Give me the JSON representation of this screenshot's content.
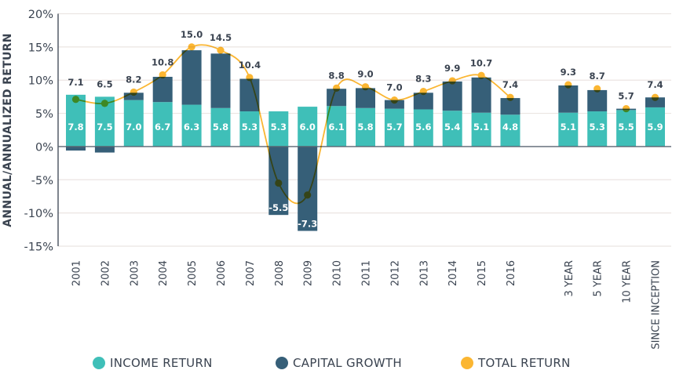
{
  "chart_data": {
    "type": "bar",
    "title": "",
    "xlabel": "",
    "ylabel": "ANNUAL/ANNUALIZED RETURN",
    "ylim": [
      -15,
      20
    ],
    "yticks": [
      20,
      15,
      10,
      5,
      0,
      -5,
      -10,
      -15
    ],
    "ytick_labels": [
      "20%",
      "15%",
      "10%",
      "5%",
      "0%",
      "-5%",
      "-10%",
      "-15%"
    ],
    "grid": true,
    "legend_placement": "bottom",
    "categories": [
      "2001",
      "2002",
      "2003",
      "2004",
      "2005",
      "2006",
      "2007",
      "2008",
      "2009",
      "2010",
      "2011",
      "2012",
      "2013",
      "2014",
      "2015",
      "2016",
      "3 YEAR",
      "5 YEAR",
      "10 YEAR",
      "SINCE INCEPTION"
    ],
    "category_gap_after": "2016",
    "series": [
      {
        "name": "INCOME RETURN",
        "type": "bar-stacked",
        "color": "#3fbfb8",
        "values": [
          7.8,
          7.5,
          7.0,
          6.7,
          6.3,
          5.8,
          5.3,
          5.3,
          6.0,
          6.1,
          5.8,
          5.7,
          5.6,
          5.4,
          5.1,
          4.8,
          5.1,
          5.3,
          5.5,
          5.9
        ]
      },
      {
        "name": "CAPITAL GROWTH",
        "type": "bar-stacked",
        "color": "#365f78",
        "values": [
          -0.6,
          -0.9,
          1.1,
          3.8,
          8.2,
          8.2,
          4.9,
          -10.3,
          -12.7,
          2.6,
          3.0,
          1.3,
          2.5,
          4.4,
          5.3,
          2.5,
          4.1,
          3.2,
          0.2,
          1.5
        ]
      },
      {
        "name": "TOTAL RETURN",
        "type": "line",
        "color": "#fbb632",
        "values": [
          7.1,
          6.5,
          8.2,
          10.8,
          15.0,
          14.5,
          10.4,
          -5.5,
          -7.3,
          8.8,
          9.0,
          7.0,
          8.3,
          9.9,
          10.7,
          7.4,
          9.3,
          8.7,
          5.7,
          7.4
        ],
        "line_connects_through": "2016"
      }
    ],
    "data_labels": {
      "income": [
        "7.8",
        "7.5",
        "7.0",
        "6.7",
        "6.3",
        "5.8",
        "5.3",
        "5.3",
        "6.0",
        "6.1",
        "5.8",
        "5.7",
        "5.6",
        "5.4",
        "5.1",
        "4.8",
        "5.1",
        "5.3",
        "5.5",
        "5.9"
      ],
      "total": [
        "7.1",
        "6.5",
        "8.2",
        "10.8",
        "15.0",
        "14.5",
        "10.4",
        "-5.5",
        "-7.3",
        "8.8",
        "9.0",
        "7.0",
        "8.3",
        "9.9",
        "10.7",
        "7.4",
        "9.3",
        "8.7",
        "5.7",
        "7.4"
      ]
    }
  },
  "legend": {
    "items": [
      {
        "label": "INCOME RETURN",
        "color": "#3fbfb8"
      },
      {
        "label": "CAPITAL GROWTH",
        "color": "#365f78"
      },
      {
        "label": "TOTAL RETURN",
        "color": "#fbb632"
      }
    ]
  },
  "colors": {
    "text": "#3a4350",
    "grid": "#ebe5e2",
    "axis": "#3a4350"
  }
}
